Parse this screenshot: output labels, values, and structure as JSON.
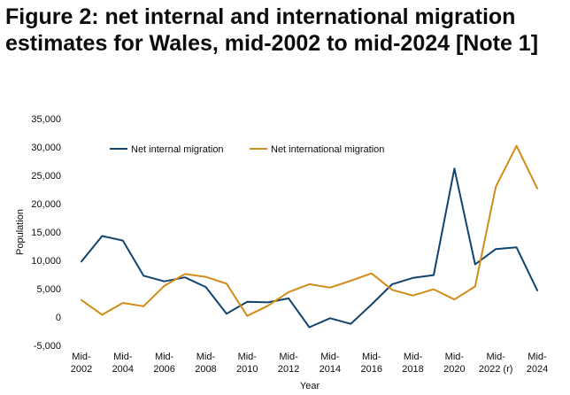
{
  "title": "Figure 2: net internal and international migration estimates for Wales, mid-2002 to mid-2024 [Note 1]",
  "chart_data": {
    "type": "line",
    "title": "Figure 2: net internal and international migration estimates for Wales, mid-2002 to mid-2024 [Note 1]",
    "xlabel": "Year",
    "ylabel": "Population",
    "ylim": [
      -5000,
      35000
    ],
    "yticks": [
      -5000,
      0,
      5000,
      10000,
      15000,
      20000,
      25000,
      30000,
      35000
    ],
    "ytick_labels": [
      "-5,000",
      "0",
      "5,000",
      "10,000",
      "15,000",
      "20,000",
      "25,000",
      "30,000",
      "35,000"
    ],
    "x": [
      "Mid-2002",
      "Mid-2003",
      "Mid-2004",
      "Mid-2005",
      "Mid-2006",
      "Mid-2007",
      "Mid-2008",
      "Mid-2009",
      "Mid-2010",
      "Mid-2011",
      "Mid-2012",
      "Mid-2013",
      "Mid-2014",
      "Mid-2015",
      "Mid-2016",
      "Mid-2017",
      "Mid-2018",
      "Mid-2019",
      "Mid-2020",
      "Mid-2021",
      "Mid-2022 (r)",
      "Mid-2023",
      "Mid-2024"
    ],
    "xtick_labels": [
      {
        "line1": "Mid-",
        "line2": "2002",
        "index": 0
      },
      {
        "line1": "Mid-",
        "line2": "2004",
        "index": 2
      },
      {
        "line1": "Mid-",
        "line2": "2006",
        "index": 4
      },
      {
        "line1": "Mid-",
        "line2": "2008",
        "index": 6
      },
      {
        "line1": "Mid-",
        "line2": "2010",
        "index": 8
      },
      {
        "line1": "Mid-",
        "line2": "2012",
        "index": 10
      },
      {
        "line1": "Mid-",
        "line2": "2014",
        "index": 12
      },
      {
        "line1": "Mid-",
        "line2": "2016",
        "index": 14
      },
      {
        "line1": "Mid-",
        "line2": "2018",
        "index": 16
      },
      {
        "line1": "Mid-",
        "line2": "2020",
        "index": 18
      },
      {
        "line1": "Mid-",
        "line2": "2022 (r)",
        "index": 20
      },
      {
        "line1": "Mid-",
        "line2": "2024",
        "index": 22
      }
    ],
    "grid": false,
    "legend_position": "top-left",
    "series": [
      {
        "name": "Net internal migration",
        "color": "#12436d",
        "values": [
          9800,
          14300,
          13500,
          7300,
          6300,
          7000,
          5300,
          600,
          2700,
          2600,
          3300,
          -1800,
          -200,
          -1200,
          2200,
          5800,
          6900,
          7400,
          26200,
          9300,
          12000,
          12300,
          4700
        ]
      },
      {
        "name": "Net international migration",
        "color": "#d08c18",
        "values": [
          3000,
          400,
          2500,
          1900,
          5500,
          7600,
          7100,
          5900,
          200,
          2000,
          4400,
          5800,
          5200,
          6400,
          7700,
          4800,
          3800,
          4900,
          3100,
          5400,
          23000,
          30200,
          22700
        ]
      }
    ]
  }
}
